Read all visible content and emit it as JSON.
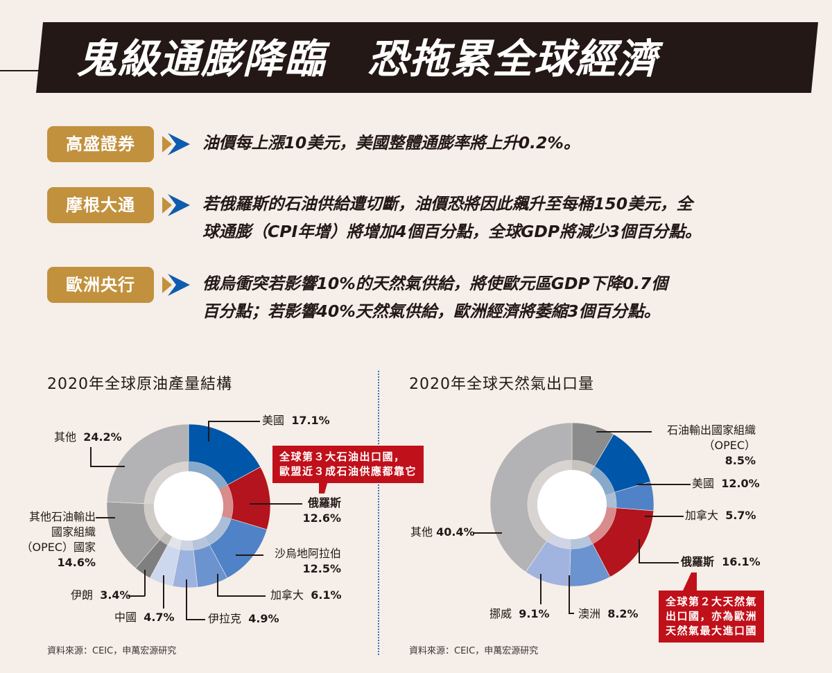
{
  "header": {
    "title": "鬼級通膨降臨　恐拖累全球經濟"
  },
  "quotes": [
    {
      "source": "高盛證券",
      "text": "油價每上漲10美元，美國整體通膨率將上升0.2%。"
    },
    {
      "source": "摩根大通",
      "text": "若俄羅斯的石油供給遭切斷，油價恐將因此飆升至每桶150美元，全\n球通膨（CPI年增）將增加4個百分點，全球GDP將減少3個百分點。"
    },
    {
      "source": "歐洲央行",
      "text": "俄烏衝突若影響10%的天然氣供給，將使歐元區GDP下降0.7個\n百分點；若影響40%天然氣供給，歐洲經濟將萎縮3個百分點。"
    }
  ],
  "colors": {
    "banner": "#231815",
    "badge": "#c2913d",
    "arrow_blue": "#0d5cae",
    "arrow_gold": "#c2913d",
    "callout": "#c0101a",
    "russia": "#b3141d",
    "usa": "#0056a8"
  },
  "charts": {
    "oil": {
      "title": "2020年全球原油產量結構",
      "source": "資料來源：CEIC，申萬宏源研究",
      "callout": "全球第３大石油出口國，\n歐盟近３成石油供應都靠它",
      "labels": {
        "usa": "美國",
        "russia": "俄羅斯",
        "saudi": "沙烏地阿拉伯",
        "canada": "加拿大",
        "iraq": "伊拉克",
        "china": "中國",
        "iran": "伊朗",
        "opec": "其他石油輸出\n國家組織\n（OPEC）國家",
        "other": "其他"
      },
      "values": {
        "usa": "17.1%",
        "russia": "12.6%",
        "saudi": "12.5%",
        "canada": "6.1%",
        "iraq": "4.9%",
        "china": "4.7%",
        "iran": "3.4%",
        "opec": "14.6%",
        "other": "24.2%"
      }
    },
    "gas": {
      "title": "2020年全球天然氣出口量",
      "source": "資料來源：CEIC，申萬宏源研究",
      "callout": "全球第２大天然氣\n出口國，亦為歐洲\n天然氣最大進口國",
      "labels": {
        "opec": "石油輸出國家組織\n（OPEC）",
        "usa": "美國",
        "canada": "加拿大",
        "russia": "俄羅斯",
        "australia": "澳洲",
        "norway": "挪威",
        "other": "其他"
      },
      "values": {
        "opec": "8.5%",
        "usa": "12.0%",
        "canada": "5.7%",
        "russia": "16.1%",
        "australia": "8.2%",
        "norway": "9.1%",
        "other": "40.4%"
      }
    }
  },
  "chart_data": [
    {
      "type": "pie",
      "title": "2020年全球原油產量結構",
      "categories": [
        "美國",
        "俄羅斯",
        "沙烏地阿拉伯",
        "加拿大",
        "伊拉克",
        "中國",
        "伊朗",
        "其他石油輸出國家組織（OPEC）國家",
        "其他"
      ],
      "values": [
        17.1,
        12.6,
        12.5,
        6.1,
        4.9,
        4.7,
        3.4,
        14.6,
        24.2
      ],
      "colors": [
        "#0056a8",
        "#b3141d",
        "#4f82c6",
        "#6b93cf",
        "#9db3df",
        "#cdd7ee",
        "#7f7f7f",
        "#9f9f9f",
        "#b3b3b5"
      ],
      "unit": "%",
      "donut": true,
      "annotation": "全球第３大石油出口國，歐盟近３成石油供應都靠它",
      "source": "資料來源：CEIC，申萬宏源研究"
    },
    {
      "type": "pie",
      "title": "2020年全球天然氣出口量",
      "categories": [
        "石油輸出國家組織（OPEC）",
        "美國",
        "加拿大",
        "俄羅斯",
        "澳洲",
        "挪威",
        "其他"
      ],
      "values": [
        8.5,
        12.0,
        5.7,
        16.1,
        8.2,
        9.1,
        40.4
      ],
      "colors": [
        "#8c8c8c",
        "#0056a8",
        "#4f82c6",
        "#b3141d",
        "#6b93cf",
        "#a1b4df",
        "#b3b3b5"
      ],
      "unit": "%",
      "donut": true,
      "annotation": "全球第２大天然氣出口國，亦為歐洲天然氣最大進口國",
      "source": "資料來源：CEIC，申萬宏源研究"
    }
  ]
}
